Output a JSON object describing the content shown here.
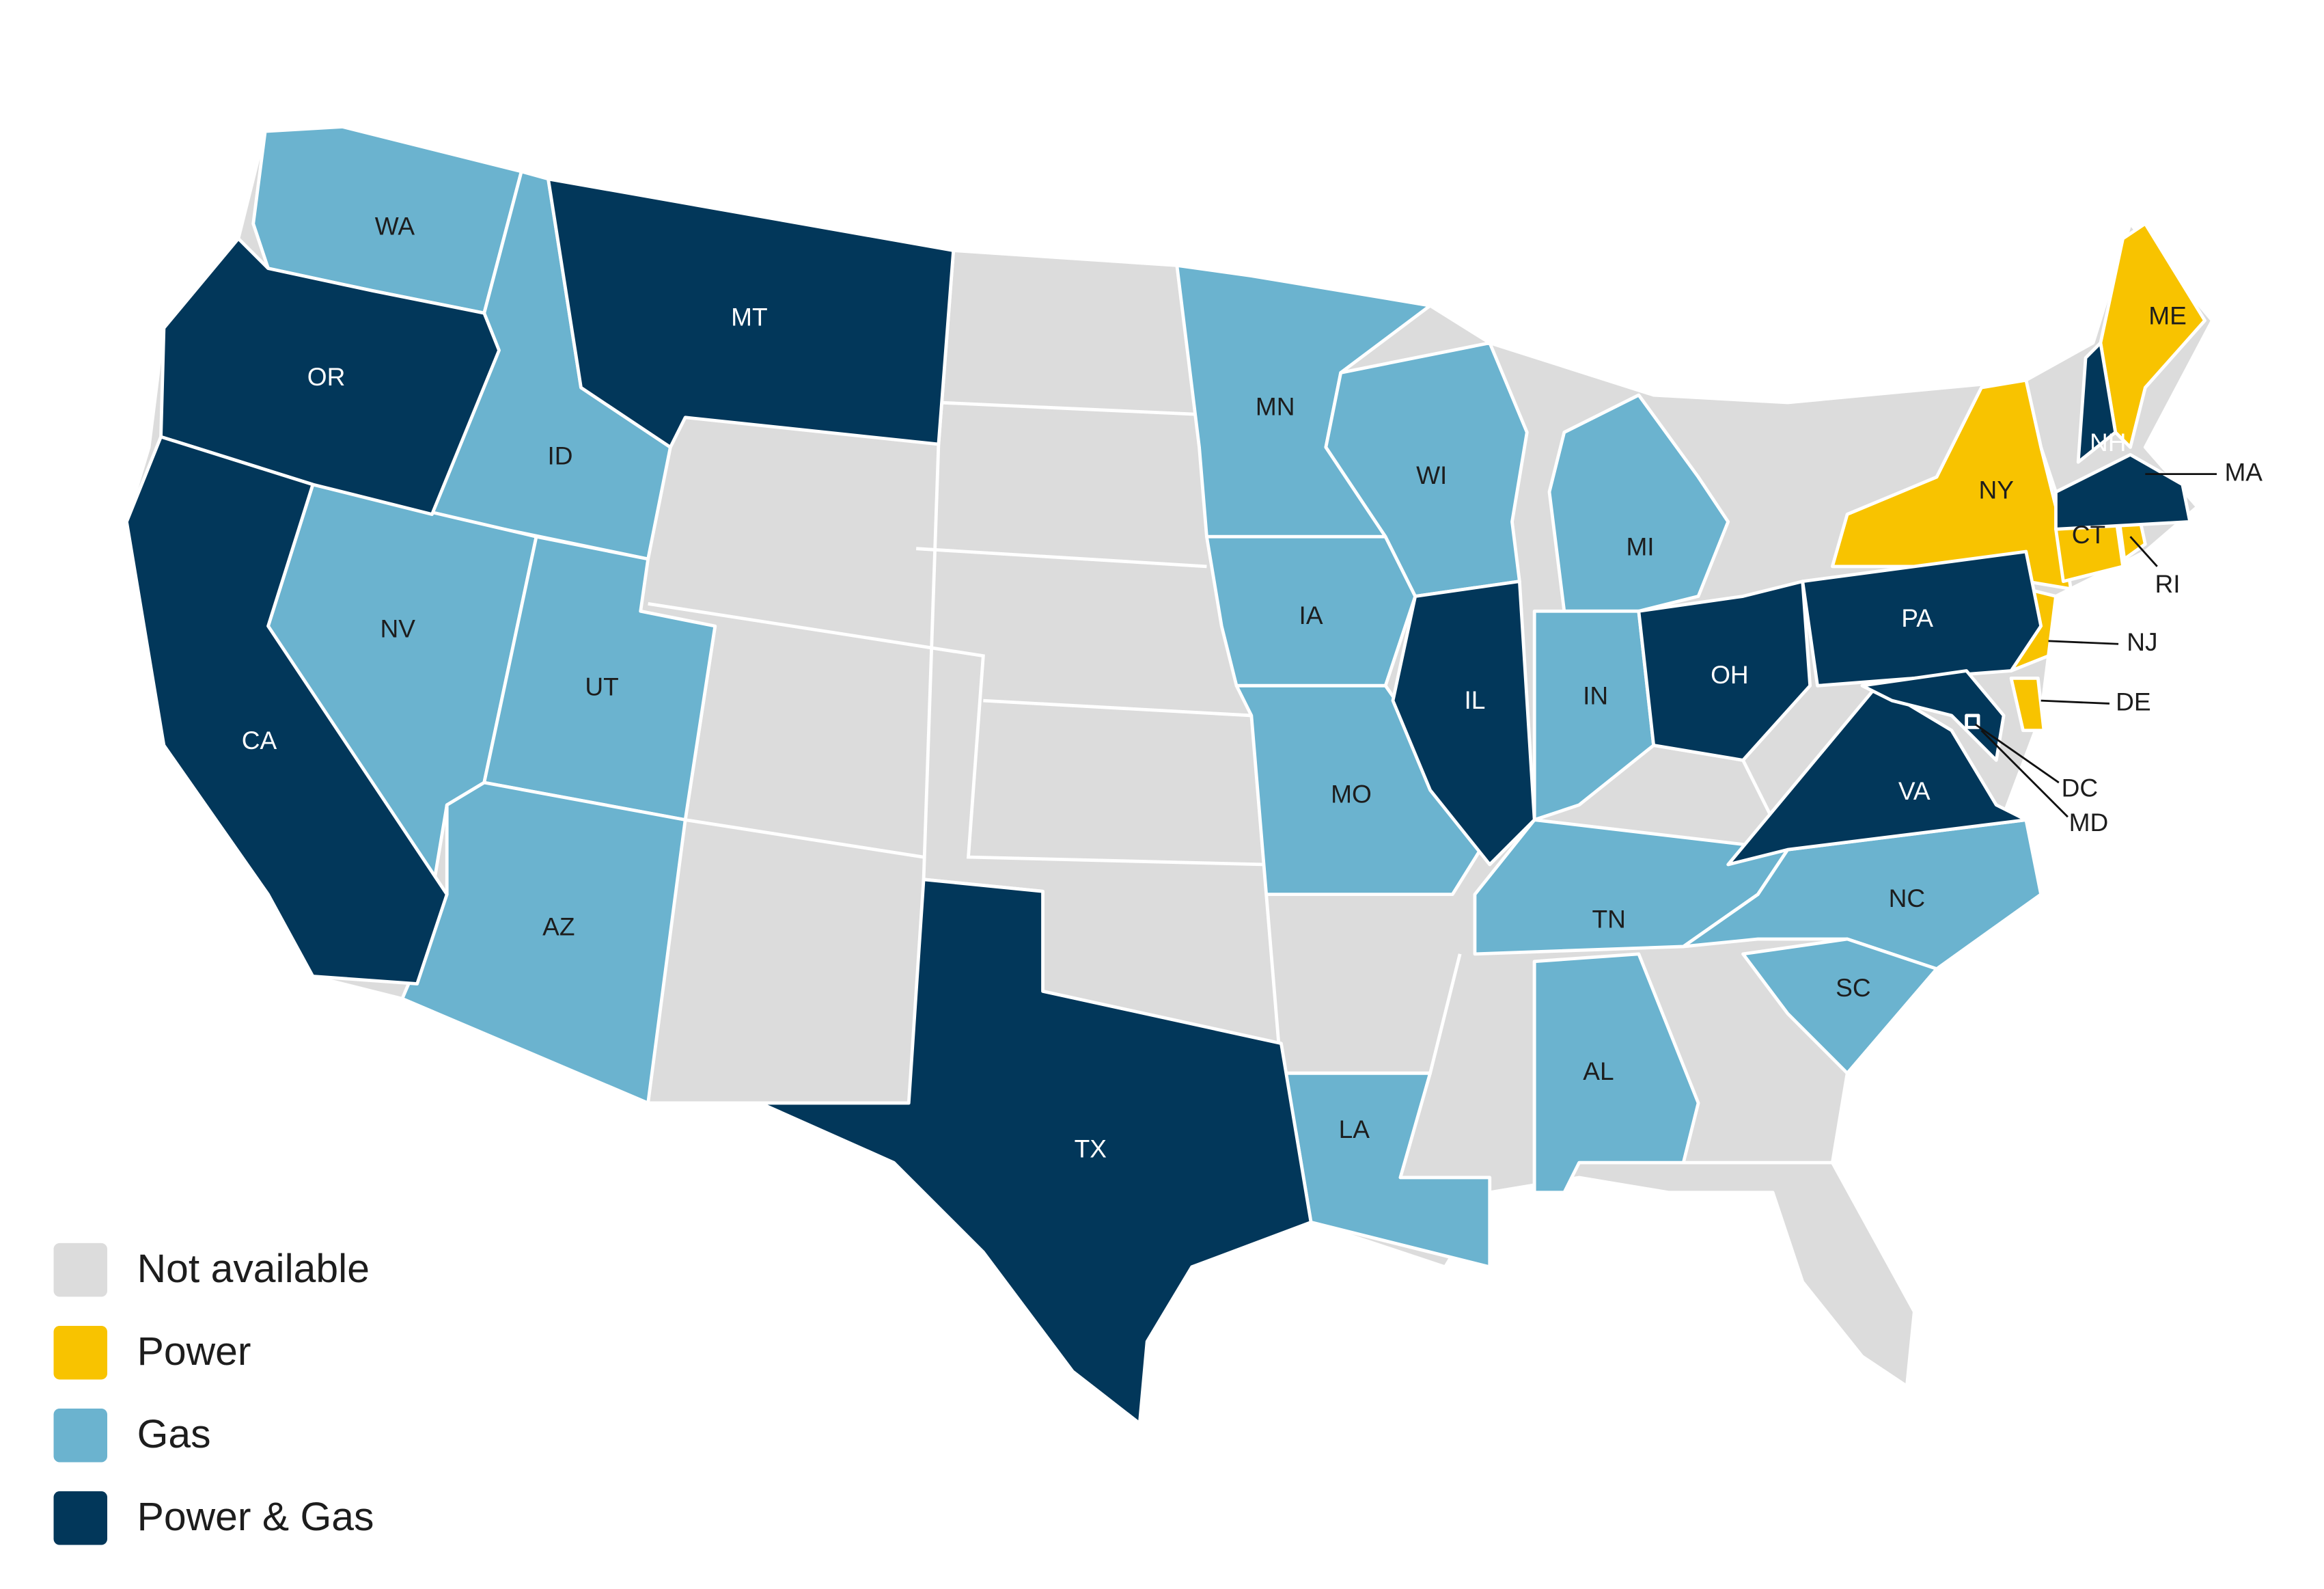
{
  "legend": [
    {
      "label": "Not available",
      "color": "#dcdcdc"
    },
    {
      "label": "Power",
      "color": "#f8c300",
      "states": [
        "NY",
        "ME",
        "CT",
        "RI",
        "NJ",
        "DE"
      ]
    },
    {
      "label": "Gas",
      "color": "#6bb3cf",
      "states": [
        "WA",
        "ID",
        "NV",
        "UT",
        "AZ",
        "MN",
        "IA",
        "MO",
        "WI",
        "MI",
        "IN",
        "TN",
        "AL",
        "LA",
        "NC",
        "SC"
      ]
    },
    {
      "label": "Power & Gas",
      "color": "#02375a",
      "states": [
        "OR",
        "CA",
        "MT",
        "TX",
        "IL",
        "OH",
        "PA",
        "VA",
        "MD",
        "DC",
        "NH",
        "MA"
      ]
    }
  ]
}
